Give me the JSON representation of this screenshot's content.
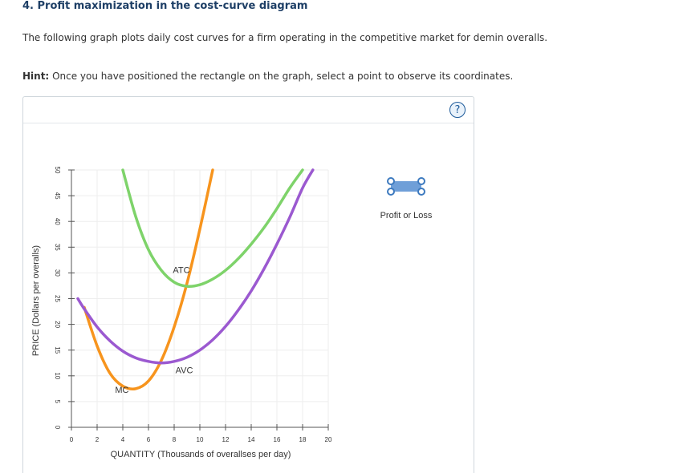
{
  "question": {
    "title": "4. Profit maximization in the cost-curve diagram",
    "text": "The following graph plots daily cost curves for a firm operating in the competitive market for demin overalls.",
    "hint_label": "Hint:",
    "hint_text": "Once you have positioned the rectangle on the graph, select a point to observe its coordinates."
  },
  "help": {
    "label": "?"
  },
  "tool": {
    "label": "Profit or Loss"
  },
  "colors": {
    "mc": "#f7941d",
    "atc": "#7ed36a",
    "avc": "#9b59d0",
    "grid": "#eeeeee",
    "axis": "#555555",
    "tool_fill": "#6f9fd8",
    "tool_handle": "#3d7abf"
  },
  "chart_data": {
    "type": "line",
    "xlabel": "QUANTITY (Thousands of overallses per day)",
    "ylabel": "PRICE (Dollars per overalls)",
    "xlim": [
      0,
      20
    ],
    "ylim": [
      0,
      50
    ],
    "xticks": [
      0,
      2,
      4,
      6,
      8,
      10,
      12,
      14,
      16,
      18,
      20
    ],
    "yticks": [
      0,
      5,
      10,
      15,
      20,
      25,
      30,
      35,
      40,
      45,
      50
    ],
    "grid": true,
    "series": [
      {
        "name": "MC",
        "color_key": "mc",
        "label_point": [
          3.4,
          6.7
        ],
        "points": [
          [
            1,
            23.3
          ],
          [
            2,
            15.8
          ],
          [
            3,
            10.5
          ],
          [
            4,
            8.0
          ],
          [
            5,
            7.5
          ],
          [
            6,
            9.0
          ],
          [
            7,
            13.0
          ],
          [
            8,
            19.5
          ],
          [
            9,
            28.0
          ],
          [
            10,
            38.5
          ],
          [
            11,
            50.0
          ]
        ]
      },
      {
        "name": "ATC",
        "color_key": "atc",
        "label_point": [
          7.9,
          30.0
        ],
        "points": [
          [
            4,
            50.0
          ],
          [
            5,
            41.0
          ],
          [
            6,
            34.5
          ],
          [
            7,
            30.5
          ],
          [
            8,
            28.2
          ],
          [
            9,
            27.4
          ],
          [
            10,
            27.7
          ],
          [
            11,
            28.8
          ],
          [
            12,
            30.5
          ],
          [
            13,
            32.8
          ],
          [
            14,
            35.6
          ],
          [
            15,
            38.8
          ],
          [
            16,
            42.5
          ],
          [
            17,
            46.5
          ],
          [
            18,
            50.0
          ]
        ]
      },
      {
        "name": "AVC",
        "color_key": "avc",
        "label_point": [
          8.1,
          10.5
        ],
        "points": [
          [
            0.5,
            25.0
          ],
          [
            1,
            23.0
          ],
          [
            2,
            19.5
          ],
          [
            3,
            16.8
          ],
          [
            4,
            14.8
          ],
          [
            5,
            13.5
          ],
          [
            6,
            12.8
          ],
          [
            7,
            12.5
          ],
          [
            8,
            12.8
          ],
          [
            9,
            13.6
          ],
          [
            10,
            15.0
          ],
          [
            11,
            17.0
          ],
          [
            12,
            19.6
          ],
          [
            13,
            22.8
          ],
          [
            14,
            26.5
          ],
          [
            15,
            30.8
          ],
          [
            16,
            35.6
          ],
          [
            17,
            40.8
          ],
          [
            18,
            46.5
          ],
          [
            18.8,
            50.0
          ]
        ]
      }
    ]
  }
}
